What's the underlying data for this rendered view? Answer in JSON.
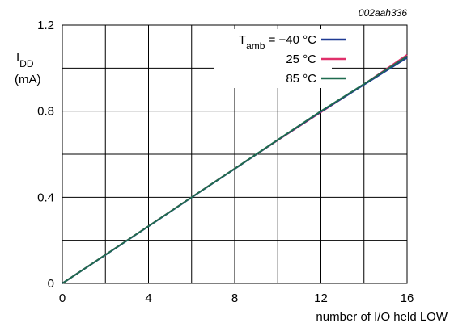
{
  "figure_id": "002aah336",
  "chart_data": {
    "type": "line",
    "xlabel": "number of I/O held LOW",
    "ylabel_main": "I",
    "ylabel_sub": "DD",
    "ylabel_unit": "(mA)",
    "xlim": [
      0,
      16
    ],
    "ylim": [
      0,
      1.2
    ],
    "x_ticks": [
      "0",
      "4",
      "8",
      "12",
      "16"
    ],
    "y_ticks": [
      "0",
      "0.4",
      "0.8",
      "1.2"
    ],
    "x_grid_step": 2,
    "y_grid_step": 0.2,
    "grid": true,
    "legend_position": "top-right",
    "legend_prefix": "T",
    "legend_prefix_sub": "amb",
    "legend_prefix_eq": " = ",
    "series": [
      {
        "name": "−40 °C",
        "color": "#1f3a93",
        "x": [
          0,
          2,
          4,
          6,
          8,
          10,
          12,
          14,
          16
        ],
        "y": [
          0,
          0.132,
          0.265,
          0.399,
          0.532,
          0.666,
          0.797,
          0.923,
          1.048
        ]
      },
      {
        "name": "25 °C",
        "color": "#e0306a",
        "x": [
          0,
          2,
          4,
          6,
          8,
          10,
          12,
          14,
          16
        ],
        "y": [
          0,
          0.133,
          0.266,
          0.4,
          0.533,
          0.665,
          0.795,
          0.925,
          1.062
        ]
      },
      {
        "name": "85 °C",
        "color": "#1f6b4f",
        "x": [
          0,
          2,
          4,
          6,
          8,
          10,
          12,
          14,
          16
        ],
        "y": [
          0,
          0.133,
          0.266,
          0.4,
          0.533,
          0.667,
          0.8,
          0.926,
          1.055
        ]
      }
    ]
  }
}
